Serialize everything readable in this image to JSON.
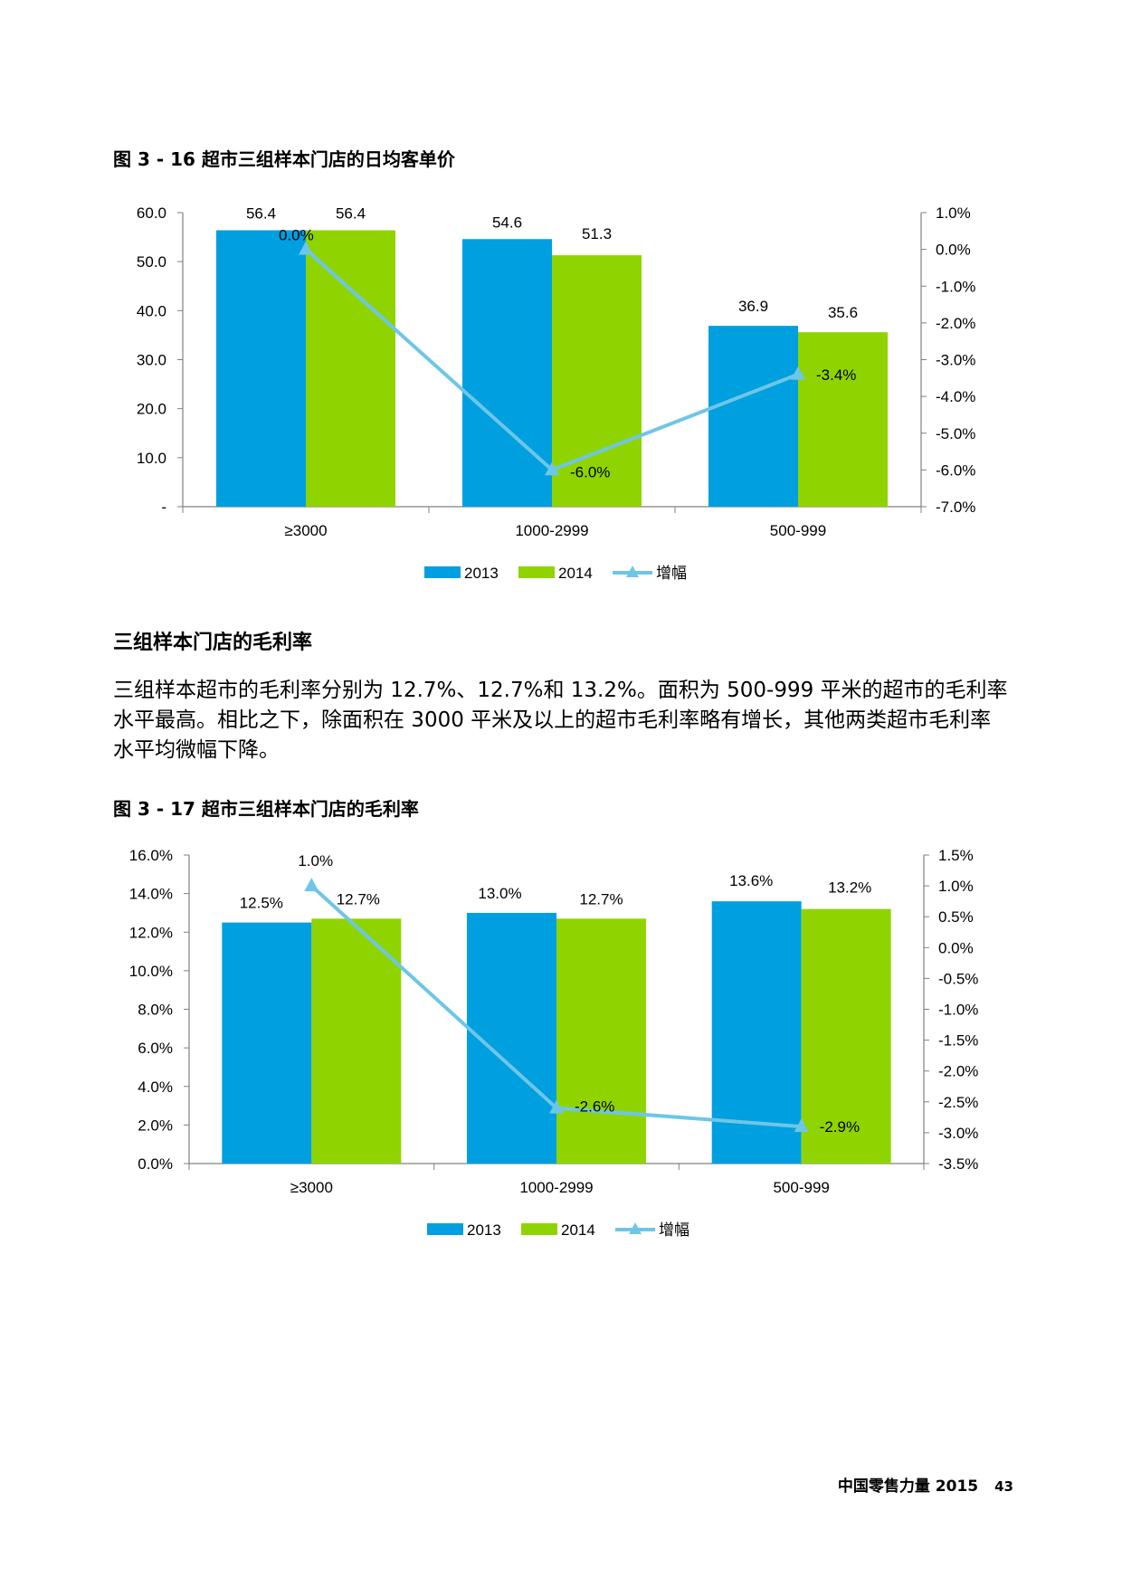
{
  "figure1": {
    "title": "图 3 - 16 超市三组样本门店的日均客单价"
  },
  "section": {
    "heading": "三组样本门店的毛利率",
    "paragraph": "三组样本超市的毛利率分别为 12.7%、12.7%和 13.2%。面积为 500-999 平米的超市的毛利率水平最高。相比之下，除面积在 3000 平米及以上的超市毛利率略有增长，其他两类超市毛利率水平均微幅下降。"
  },
  "figure2": {
    "title": "图 3 - 17 超市三组样本门店的毛利率"
  },
  "footer": {
    "publication": "中国零售力量 2015",
    "page_number": "43"
  },
  "chart_data": [
    {
      "type": "bar",
      "title": "图 3 - 16 超市三组样本门店的日均客单价",
      "categories": [
        "≥3000",
        "1000-2999",
        "500-999"
      ],
      "series": [
        {
          "name": "2013",
          "type": "bar",
          "axis": "left",
          "color": "#009fdf",
          "values": [
            56.4,
            54.6,
            36.9
          ],
          "labels": [
            "56.4",
            "54.6",
            "36.9"
          ]
        },
        {
          "name": "2014",
          "type": "bar",
          "axis": "left",
          "color": "#8fd400",
          "values": [
            56.4,
            51.3,
            35.6
          ],
          "labels": [
            "56.4",
            "51.3",
            "35.6"
          ]
        },
        {
          "name": "增幅",
          "type": "line",
          "axis": "right",
          "color": "#6ec6e6",
          "values": [
            0.0,
            -6.0,
            -3.4
          ],
          "labels": [
            "0.0%",
            "-6.0%",
            "-3.4%"
          ]
        }
      ],
      "left_axis": {
        "min": 0,
        "max": 60,
        "ticks": [
          "-",
          "10.0",
          "20.0",
          "30.0",
          "40.0",
          "50.0",
          "60.0"
        ]
      },
      "right_axis": {
        "min": -7.0,
        "max": 1.0,
        "ticks": [
          "-7.0%",
          "-6.0%",
          "-5.0%",
          "-4.0%",
          "-3.0%",
          "-2.0%",
          "-1.0%",
          "0.0%",
          "1.0%"
        ]
      },
      "legend": [
        "2013",
        "2014",
        "增幅"
      ],
      "legend_position": "bottom"
    },
    {
      "type": "bar",
      "title": "图 3 - 17 超市三组样本门店的毛利率",
      "categories": [
        "≥3000",
        "1000-2999",
        "500-999"
      ],
      "series": [
        {
          "name": "2013",
          "type": "bar",
          "axis": "left",
          "color": "#009fdf",
          "values": [
            12.5,
            13.0,
            13.6
          ],
          "labels": [
            "12.5%",
            "13.0%",
            "13.6%"
          ]
        },
        {
          "name": "2014",
          "type": "bar",
          "axis": "left",
          "color": "#8fd400",
          "values": [
            12.7,
            12.7,
            13.2
          ],
          "labels": [
            "12.7%",
            "12.7%",
            "13.2%"
          ]
        },
        {
          "name": "增幅",
          "type": "line",
          "axis": "right",
          "color": "#6ec6e6",
          "values": [
            1.0,
            -2.6,
            -2.9
          ],
          "labels": [
            "1.0%",
            "-2.6%",
            "-2.9%"
          ]
        }
      ],
      "left_axis": {
        "min": 0,
        "max": 16,
        "ticks": [
          "0.0%",
          "2.0%",
          "4.0%",
          "6.0%",
          "8.0%",
          "10.0%",
          "12.0%",
          "14.0%",
          "16.0%"
        ]
      },
      "right_axis": {
        "min": -3.5,
        "max": 1.5,
        "ticks": [
          "-3.5%",
          "-3.0%",
          "-2.5%",
          "-2.0%",
          "-1.5%",
          "-1.0%",
          "-0.5%",
          "0.0%",
          "0.5%",
          "1.0%",
          "1.5%"
        ]
      },
      "legend": [
        "2013",
        "2014",
        "增幅"
      ],
      "legend_position": "bottom"
    }
  ]
}
